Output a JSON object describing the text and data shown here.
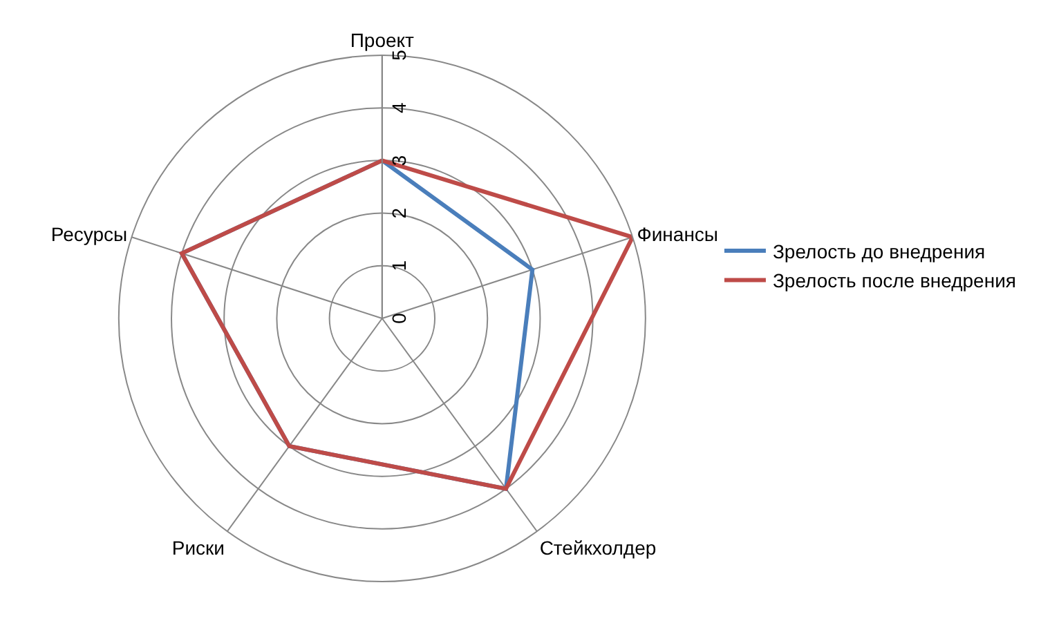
{
  "chart_data": {
    "type": "radar",
    "categories": [
      "Проект",
      "Финансы",
      "Стейкхолдер",
      "Риски",
      "Ресурсы"
    ],
    "series": [
      {
        "name": "Зрелость до внедрения",
        "color": "#4a7ebb",
        "values": [
          3,
          3,
          4,
          3,
          4
        ]
      },
      {
        "name": "Зрелость после внедрения",
        "color": "#be4b48",
        "values": [
          3,
          5,
          4,
          3,
          4
        ]
      }
    ],
    "ylim": [
      0,
      5
    ],
    "yticks": [
      0,
      1,
      2,
      3,
      4,
      5
    ],
    "grid": true,
    "legend": "right",
    "marker": "none",
    "line_style": "solid"
  }
}
